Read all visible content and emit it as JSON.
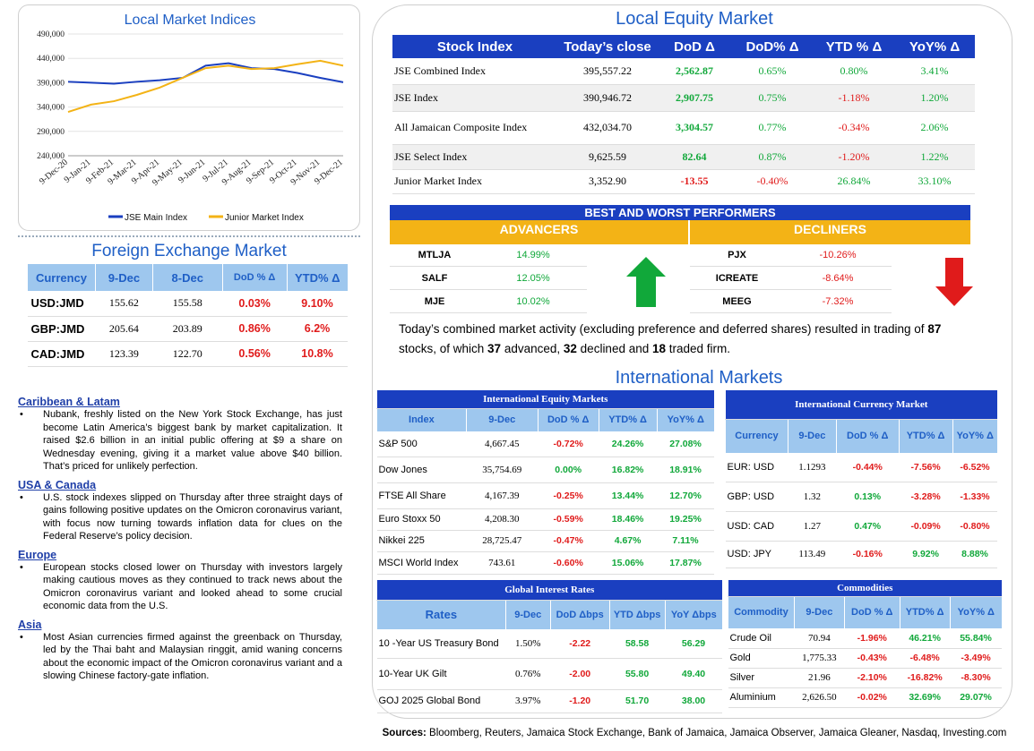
{
  "chart": {
    "title": "Local Market Indices",
    "legend": [
      "JSE Main Index",
      "Junior Market Index"
    ]
  },
  "chart_data": {
    "type": "line",
    "title": "Local Market Indices",
    "x": [
      "9-Dec-20",
      "9-Jan-21",
      "9-Feb-21",
      "9-Mar-21",
      "9-Apr-21",
      "9-May-21",
      "9-Jun-21",
      "9-Jul-21",
      "9-Aug-21",
      "9-Sep-21",
      "9-Oct-21",
      "9-Nov-21",
      "9-Dec-21"
    ],
    "ylim": [
      240000,
      490000
    ],
    "y_ticks": [
      "240,000",
      "290,000",
      "340,000",
      "390,000",
      "440,000",
      "490,000"
    ],
    "series": [
      {
        "name": "JSE Main Index",
        "color": "#1a3fc0",
        "values": [
          392000,
          390000,
          388000,
          392000,
          395000,
          400000,
          425000,
          430000,
          420000,
          418000,
          410000,
          400000,
          391000
        ]
      },
      {
        "name": "Junior Market Index",
        "color": "#f3b316",
        "values": [
          330000,
          345000,
          352000,
          365000,
          380000,
          400000,
          420000,
          425000,
          418000,
          420000,
          428000,
          435000,
          425000
        ]
      }
    ],
    "legend": "bottom",
    "grid": true
  },
  "fx": {
    "title": "Foreign Exchange Market",
    "headers": [
      "Currency",
      "9-Dec",
      "8-Dec",
      "DoD % Δ",
      "YTD% Δ"
    ],
    "rows": [
      {
        "cur": "USD:JMD",
        "d9": "155.62",
        "d8": "155.58",
        "dod": "0.03%",
        "ytd": "9.10%"
      },
      {
        "cur": "GBP:JMD",
        "d9": "205.64",
        "d8": "203.89",
        "dod": "0.86%",
        "ytd": "6.2%"
      },
      {
        "cur": "CAD:JMD",
        "d9": "123.39",
        "d8": "122.70",
        "dod": "0.56%",
        "ytd": "10.8%"
      }
    ]
  },
  "news": [
    {
      "head": "Caribbean & Latam",
      "text": "Nubank, freshly listed on the New York Stock Exchange, has just become Latin America’s biggest bank by market capitalization. It raised $2.6 billion in an initial public offering at $9 a share on Wednesday evening, giving it a market value above $40 billion. That’s priced for unlikely perfection."
    },
    {
      "head": "USA & Canada",
      "text": "U.S. stock indexes slipped on Thursday after three straight days of gains following positive updates on the Omicron coronavirus variant, with focus now turning towards inflation data for clues on the Federal Reserve’s policy decision."
    },
    {
      "head": "Europe",
      "text": "European stocks closed lower on Thursday with investors largely making cautious moves as they continued to track news about the Omicron coronavirus variant and looked ahead to some crucial economic data from the U.S."
    },
    {
      "head": "Asia",
      "text": "Most Asian currencies firmed against the greenback on Thursday, led by the Thai baht and Malaysian ringgit, amid waning concerns about the economic impact of the Omicron coronavirus variant and a slowing Chinese factory-gate inflation."
    }
  ],
  "local_equity": {
    "title": "Local Equity Market",
    "headers": [
      "Stock Index",
      "Today’s close",
      "DoD  Δ",
      "DoD% Δ",
      "YTD % Δ",
      "YoY% Δ"
    ],
    "rows": [
      {
        "name": "JSE Combined Index",
        "close": "395,557.22",
        "dod": "2,562.87",
        "dodp": "0.65%",
        "ytd": "0.80%",
        "yoy": "3.41%"
      },
      {
        "name": "JSE Index",
        "close": "390,946.72",
        "dod": "2,907.75",
        "dodp": "0.75%",
        "ytd": "-1.18%",
        "yoy": "1.20%"
      },
      {
        "name": "All Jamaican Composite Index",
        "close": "432,034.70",
        "dod": "3,304.57",
        "dodp": "0.77%",
        "ytd": "-0.34%",
        "yoy": "2.06%"
      },
      {
        "name": "JSE Select Index",
        "close": "9,625.59",
        "dod": "82.64",
        "dodp": "0.87%",
        "ytd": "-1.20%",
        "yoy": "1.22%"
      },
      {
        "name": "Junior Market Index",
        "close": "3,352.90",
        "dod": "-13.55",
        "dodp": "-0.40%",
        "ytd": "26.84%",
        "yoy": "33.10%"
      }
    ]
  },
  "performers": {
    "title": "BEST AND WORST PERFORMERS",
    "adv_label": "ADVANCERS",
    "dec_label": "DECLINERS",
    "advancers": [
      {
        "sym": "MTLJA",
        "pct": "14.99%"
      },
      {
        "sym": "SALF",
        "pct": "12.05%"
      },
      {
        "sym": "MJE",
        "pct": "10.02%"
      }
    ],
    "decliners": [
      {
        "sym": "PJX",
        "pct": "-10.26%"
      },
      {
        "sym": "ICREATE",
        "pct": "-8.64%"
      },
      {
        "sym": "MEEG",
        "pct": "-7.32%"
      }
    ]
  },
  "summary": {
    "p1": "Today’s combined market activity (excluding preference and deferred shares) resulted in trading of ",
    "total": "87",
    "p2": " stocks, of which ",
    "adv": "37",
    "p3": " advanced, ",
    "dec": "32",
    "p4": " declined and ",
    "firm": "18",
    "p5": " traded firm."
  },
  "intl_title": "International Markets",
  "intl_equity": {
    "title": "International Equity Markets",
    "headers": [
      "Index",
      "9-Dec",
      "DoD % Δ",
      "YTD% Δ",
      "YoY% Δ"
    ],
    "rows": [
      {
        "name": "S&P 500",
        "v": "4,667.45",
        "dod": "-0.72%",
        "ytd": "24.26%",
        "yoy": "27.08%"
      },
      {
        "name": "Dow Jones",
        "v": "35,754.69",
        "dod": "0.00%",
        "ytd": "16.82%",
        "yoy": "18.91%"
      },
      {
        "name": "FTSE All Share",
        "v": "4,167.39",
        "dod": "-0.25%",
        "ytd": "13.44%",
        "yoy": "12.70%"
      },
      {
        "name": "Euro Stoxx 50",
        "v": "4,208.30",
        "dod": "-0.59%",
        "ytd": "18.46%",
        "yoy": "19.25%"
      },
      {
        "name": "Nikkei 225",
        "v": "28,725.47",
        "dod": "-0.47%",
        "ytd": "4.67%",
        "yoy": "7.11%"
      },
      {
        "name": "MSCI World Index",
        "v": "743.61",
        "dod": "-0.60%",
        "ytd": "15.06%",
        "yoy": "17.87%"
      }
    ]
  },
  "intl_currency": {
    "title": "International Currency Market",
    "headers": [
      "Currency",
      "9-Dec",
      "DoD % Δ",
      "YTD% Δ",
      "YoY% Δ"
    ],
    "rows": [
      {
        "name": "EUR: USD",
        "v": "1.1293",
        "dod": "-0.44%",
        "ytd": "-7.56%",
        "yoy": "-6.52%"
      },
      {
        "name": "GBP: USD",
        "v": "1.32",
        "dod": "0.13%",
        "ytd": "-3.28%",
        "yoy": "-1.33%"
      },
      {
        "name": "USD: CAD",
        "v": "1.27",
        "dod": "0.47%",
        "ytd": "-0.09%",
        "yoy": "-0.80%"
      },
      {
        "name": "USD: JPY",
        "v": "113.49",
        "dod": "-0.16%",
        "ytd": "9.92%",
        "yoy": "8.88%"
      }
    ]
  },
  "rates": {
    "title": "Global Interest Rates",
    "headers": [
      "Rates",
      "9-Dec",
      "DoD Δbps",
      "YTD Δbps",
      "YoY Δbps"
    ],
    "rows": [
      {
        "name": "10 -Year US Treasury Bond",
        "v": "1.50%",
        "dod": "-2.22",
        "ytd": "58.58",
        "yoy": "56.29"
      },
      {
        "name": "10-Year UK Gilt",
        "v": "0.76%",
        "dod": "-2.00",
        "ytd": "55.80",
        "yoy": "49.40"
      },
      {
        "name": "GOJ 2025 Global Bond",
        "v": "3.97%",
        "dod": "-1.20",
        "ytd": "51.70",
        "yoy": "38.00"
      }
    ]
  },
  "commodities": {
    "title": "Commodities",
    "headers": [
      "Commodity",
      "9-Dec",
      "DoD % Δ",
      "YTD% Δ",
      "YoY% Δ"
    ],
    "rows": [
      {
        "name": "Crude Oil",
        "v": "70.94",
        "dod": "-1.96%",
        "ytd": "46.21%",
        "yoy": "55.84%"
      },
      {
        "name": "Gold",
        "v": "1,775.33",
        "dod": "-0.43%",
        "ytd": "-6.48%",
        "yoy": "-3.49%"
      },
      {
        "name": "Silver",
        "v": "21.96",
        "dod": "-2.10%",
        "ytd": "-16.82%",
        "yoy": "-8.30%"
      },
      {
        "name": "Aluminium",
        "v": "2,626.50",
        "dod": "-0.02%",
        "ytd": "32.69%",
        "yoy": "29.07%"
      }
    ]
  },
  "sources": {
    "label": "Sources:",
    "text": " Bloomberg, Reuters, Jamaica Stock Exchange, Bank of Jamaica, Jamaica Observer, Jamaica Gleaner, Nasdaq, Investing.com"
  },
  "colors": {
    "accent_blue": "#1a3fc0",
    "title_blue": "#1f5fc6",
    "gold": "#f3b316",
    "green": "#11a83a",
    "red": "#e01b1b"
  }
}
